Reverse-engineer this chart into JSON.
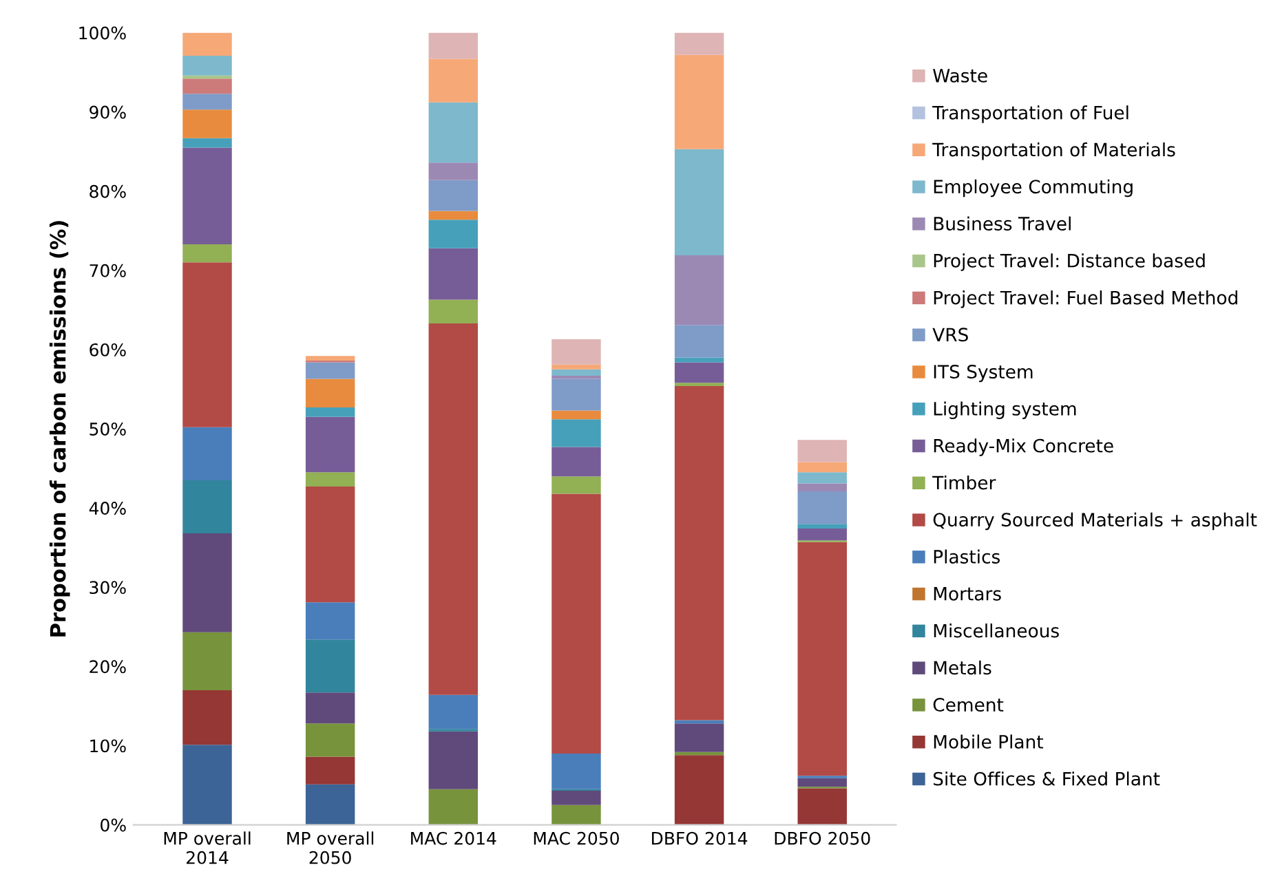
{
  "chart_data": {
    "type": "bar",
    "stacked": true,
    "ylabel": "Proportion of carbon emissions (%)",
    "categories": [
      "MP overall 2014",
      "MP overall 2050",
      "MAC 2014",
      "MAC 2050",
      "DBFO 2014",
      "DBFO 2050"
    ],
    "series": [
      {
        "name": "Site Offices & Fixed Plant",
        "color": "#3c6496",
        "values": [
          10.1,
          5.1,
          0,
          0,
          0,
          0
        ]
      },
      {
        "name": "Mobile Plant",
        "color": "#953735",
        "values": [
          6.9,
          3.5,
          0,
          0,
          8.8,
          4.6
        ]
      },
      {
        "name": "Cement",
        "color": "#77933c",
        "values": [
          7.3,
          4.2,
          4.5,
          2.5,
          0.4,
          0.2
        ]
      },
      {
        "name": "Metals",
        "color": "#604a7b",
        "values": [
          12.5,
          3.9,
          7.3,
          1.8,
          3.6,
          1.1
        ]
      },
      {
        "name": "Miscellaneous",
        "color": "#31859c",
        "values": [
          6.7,
          6.7,
          0.3,
          0.2,
          0,
          0
        ]
      },
      {
        "name": "Mortars",
        "color": "#c0752f",
        "values": [
          0,
          0,
          0,
          0,
          0,
          0
        ]
      },
      {
        "name": "Plastics",
        "color": "#4a7ebb",
        "values": [
          6.7,
          4.7,
          4.3,
          4.5,
          0.4,
          0.3
        ]
      },
      {
        "name": "Quarry Sourced Materials + asphalt",
        "color": "#b24a46",
        "values": [
          20.8,
          14.6,
          46.9,
          32.8,
          42.2,
          29.5
        ]
      },
      {
        "name": "Timber",
        "color": "#92b054",
        "values": [
          2.3,
          1.8,
          3.0,
          2.2,
          0.4,
          0.2
        ]
      },
      {
        "name": "Ready-Mix Concrete",
        "color": "#775d98",
        "values": [
          12.2,
          7.0,
          6.5,
          3.7,
          2.6,
          1.5
        ]
      },
      {
        "name": "Lighting system",
        "color": "#47a0ba",
        "values": [
          1.2,
          1.2,
          3.6,
          3.5,
          0.6,
          0.6
        ]
      },
      {
        "name": "ITS System",
        "color": "#e88b3e",
        "values": [
          3.6,
          3.6,
          1.1,
          1.1,
          0,
          0
        ]
      },
      {
        "name": "VRS",
        "color": "#7f9bc7",
        "values": [
          2.0,
          2.1,
          3.9,
          4.0,
          4.1,
          4.1
        ]
      },
      {
        "name": "Project Travel: Fuel Based Method",
        "color": "#cc7a7a",
        "values": [
          1.9,
          0.2,
          0,
          0,
          0,
          0
        ]
      },
      {
        "name": "Project Travel: Distance based",
        "color": "#a9c68a",
        "values": [
          0.4,
          0,
          0,
          0,
          0,
          0
        ]
      },
      {
        "name": "Business Travel",
        "color": "#9b89b4",
        "values": [
          0,
          0,
          2.2,
          0.4,
          8.8,
          1.0
        ]
      },
      {
        "name": "Employee Commuting",
        "color": "#7db8cc",
        "values": [
          2.5,
          0,
          7.6,
          0.8,
          13.4,
          1.4
        ]
      },
      {
        "name": "Transportation of Materials",
        "color": "#f6a877",
        "values": [
          2.9,
          0.6,
          5.5,
          0.6,
          11.9,
          1.3
        ]
      },
      {
        "name": "Transportation of Fuel",
        "color": "#b3c2de",
        "values": [
          0,
          0,
          0,
          0,
          0,
          0
        ]
      },
      {
        "name": "Waste",
        "color": "#dfb4b4",
        "values": [
          0,
          0,
          3.3,
          3.2,
          2.8,
          2.8
        ]
      }
    ],
    "ylim": [
      0,
      100
    ],
    "yticks": [
      {
        "value": 0,
        "label": "0%"
      },
      {
        "value": 10,
        "label": "10%"
      },
      {
        "value": 20,
        "label": "20%"
      },
      {
        "value": 30,
        "label": "30%"
      },
      {
        "value": 40,
        "label": "40%"
      },
      {
        "value": 50,
        "label": "50%"
      },
      {
        "value": 60,
        "label": "60%"
      },
      {
        "value": 70,
        "label": "70%"
      },
      {
        "value": 80,
        "label": "80%"
      },
      {
        "value": 90,
        "label": "90%"
      },
      {
        "value": 100,
        "label": "100%"
      }
    ],
    "grid": false,
    "legend": "right"
  }
}
